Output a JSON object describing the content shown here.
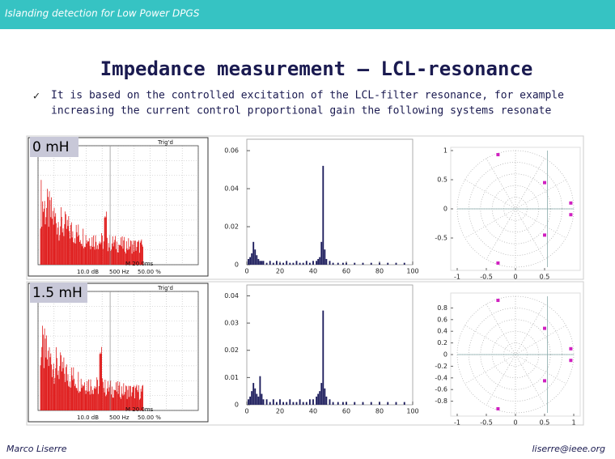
{
  "header": {
    "title": "Islanding detection for Low Power DPGS"
  },
  "slide": {
    "title": "Impedance measurement – LCL-resonance",
    "bullet": [
      "It is based on the controlled excitation of the LCL-filter resonance, for example",
      "increasing the current control proportional gain the following systems resonate"
    ]
  },
  "panels": [
    {
      "label": "0 mH",
      "scope": {
        "trigger": "Trig'd",
        "timebase": "M 20.0ms",
        "scale": "10.0 dB",
        "freq": "500 Hz",
        "percent": "50.00 %"
      },
      "spectrum": {
        "type": "bar",
        "color": "#1c1c5c",
        "x": [
          1,
          2,
          3,
          4,
          5,
          6,
          7,
          8,
          9,
          10,
          12,
          14,
          16,
          18,
          20,
          22,
          24,
          26,
          28,
          30,
          32,
          34,
          36,
          38,
          40,
          42,
          43,
          44,
          45,
          46,
          47,
          48,
          50,
          52,
          55,
          58,
          60,
          65,
          70,
          75,
          80,
          85,
          90,
          95
        ],
        "values": [
          0.003,
          0.004,
          0.006,
          0.012,
          0.008,
          0.005,
          0.003,
          0.002,
          0.002,
          0.002,
          0.001,
          0.002,
          0.001,
          0.002,
          0.001,
          0.001,
          0.002,
          0.001,
          0.001,
          0.002,
          0.001,
          0.001,
          0.002,
          0.001,
          0.002,
          0.002,
          0.003,
          0.004,
          0.012,
          0.052,
          0.008,
          0.003,
          0.002,
          0.001,
          0.001,
          0.001,
          0.001,
          0.001,
          0.001,
          0.001,
          0.001,
          0.001,
          0.001,
          0.001
        ],
        "xlim": [
          0,
          100
        ],
        "ylim": [
          0,
          0.066
        ],
        "xticks": [
          0,
          20,
          40,
          60,
          80,
          100
        ],
        "yticks": [
          0,
          0.02,
          0.04,
          0.06
        ]
      },
      "polar": {
        "xlim": [
          -1,
          1
        ],
        "ylim": [
          -1,
          1
        ],
        "xticks": [
          -1,
          -0.5,
          0,
          0.5
        ],
        "yticks": [
          1,
          0.5,
          0,
          -0.5
        ]
      }
    },
    {
      "label": "1.5 mH",
      "scope": {
        "trigger": "Trig'd",
        "timebase": "M 20.0ms",
        "scale": "10.0 dB",
        "freq": "500 Hz",
        "percent": "50.00 %"
      },
      "spectrum": {
        "type": "bar",
        "color": "#1c1c5c",
        "x": [
          1,
          2,
          3,
          4,
          5,
          6,
          7,
          8,
          9,
          10,
          12,
          14,
          16,
          18,
          20,
          22,
          24,
          26,
          28,
          30,
          32,
          34,
          36,
          38,
          40,
          42,
          43,
          44,
          45,
          46,
          47,
          48,
          50,
          52,
          55,
          58,
          60,
          65,
          70,
          75,
          80,
          85,
          90,
          95
        ],
        "values": [
          0.002,
          0.003,
          0.005,
          0.008,
          0.006,
          0.004,
          0.003,
          0.0105,
          0.004,
          0.002,
          0.002,
          0.001,
          0.002,
          0.001,
          0.002,
          0.001,
          0.001,
          0.002,
          0.001,
          0.001,
          0.002,
          0.001,
          0.001,
          0.002,
          0.002,
          0.003,
          0.004,
          0.005,
          0.008,
          0.0346,
          0.006,
          0.003,
          0.002,
          0.001,
          0.001,
          0.001,
          0.001,
          0.001,
          0.001,
          0.001,
          0.001,
          0.001,
          0.001,
          0.001
        ],
        "xlim": [
          0,
          100
        ],
        "ylim": [
          0,
          0.044
        ],
        "xticks": [
          0,
          20,
          40,
          60,
          80,
          100
        ],
        "yticks": [
          0,
          0.01,
          0.02,
          0.03,
          0.04
        ]
      },
      "polar": {
        "xlim": [
          -1,
          1
        ],
        "ylim": [
          -1,
          1
        ],
        "xticks": [
          -1,
          -0.5,
          0,
          0.5,
          1
        ],
        "yticks": [
          0.8,
          0.6,
          0.4,
          0.2,
          0,
          -0.2,
          -0.4,
          -0.6,
          -0.8
        ]
      }
    }
  ],
  "footer": {
    "author": "Marco Liserre",
    "email": "liserre@ieee.org"
  }
}
